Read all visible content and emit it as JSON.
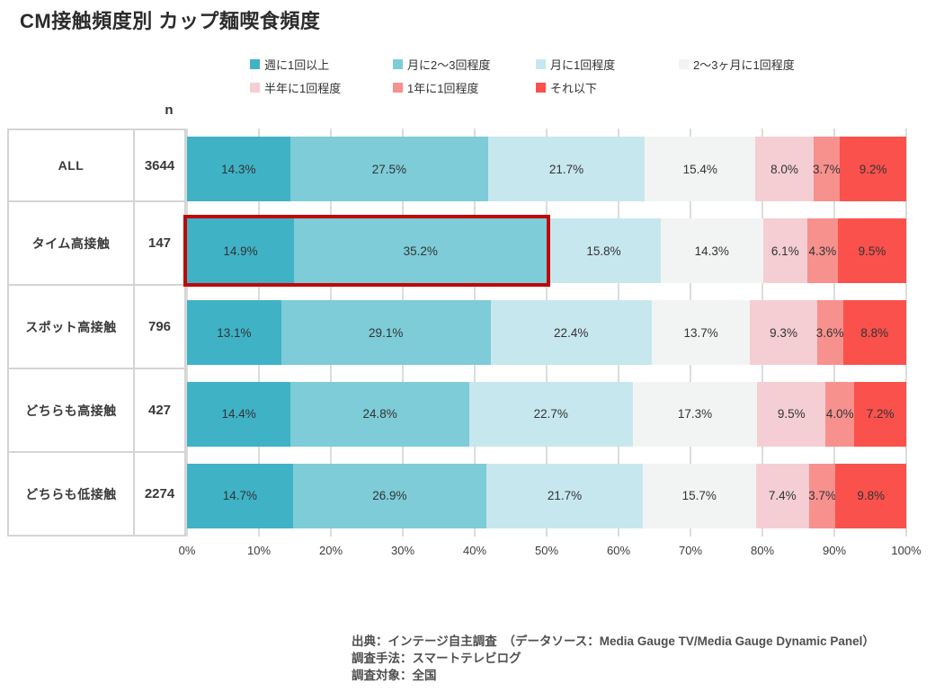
{
  "title": "CM接触頻度別 カップ麺喫食頻度",
  "n_header": "n",
  "legend": {
    "items": [
      {
        "label": "週に1回以上",
        "color": "#3fb2c6"
      },
      {
        "label": "月に2〜3回程度",
        "color": "#7dccd8"
      },
      {
        "label": "月に1回程度",
        "color": "#c7e7ee"
      },
      {
        "label": "2〜3ヶ月に1回程度",
        "color": "#f2f4f4"
      },
      {
        "label": "半年に1回程度",
        "color": "#f4ced3"
      },
      {
        "label": "1年に1回程度",
        "color": "#f7918e"
      },
      {
        "label": "それ以下",
        "color": "#fa514c"
      }
    ]
  },
  "chart_data": {
    "type": "bar",
    "stacked": true,
    "orientation": "horizontal",
    "unit": "%",
    "xlim": [
      0,
      100
    ],
    "x_ticks": [
      "0%",
      "10%",
      "20%",
      "30%",
      "40%",
      "50%",
      "60%",
      "70%",
      "80%",
      "90%",
      "100%"
    ],
    "grid": true,
    "legend_position": "top",
    "categories": [
      "ALL",
      "タイム高接触",
      "スポット高接触",
      "どちらも高接触",
      "どちらも低接触"
    ],
    "n_values": [
      3644,
      147,
      796,
      427,
      2274
    ],
    "series": [
      {
        "name": "週に1回以上",
        "color": "#3fb2c6",
        "values": [
          14.3,
          14.9,
          13.1,
          14.4,
          14.7
        ]
      },
      {
        "name": "月に2〜3回程度",
        "color": "#7dccd8",
        "values": [
          27.5,
          35.2,
          29.1,
          24.8,
          26.9
        ]
      },
      {
        "name": "月に1回程度",
        "color": "#c7e7ee",
        "values": [
          21.7,
          15.8,
          22.4,
          22.7,
          21.7
        ]
      },
      {
        "name": "2〜3ヶ月に1回程度",
        "color": "#f2f4f4",
        "values": [
          15.4,
          14.3,
          13.7,
          17.3,
          15.7
        ]
      },
      {
        "name": "半年に1回程度",
        "color": "#f4ced3",
        "values": [
          8.0,
          6.1,
          9.3,
          9.5,
          7.4
        ]
      },
      {
        "name": "1年に1回程度",
        "color": "#f7918e",
        "values": [
          3.7,
          4.3,
          3.6,
          4.0,
          3.7
        ]
      },
      {
        "name": "それ以下",
        "color": "#fa514c",
        "values": [
          9.2,
          9.5,
          8.8,
          7.2,
          9.8
        ]
      }
    ],
    "highlight": {
      "row": "タイム高接触",
      "row_index": 1,
      "series_span": 2,
      "color": "#bf0808"
    }
  },
  "footer": {
    "lines": [
      "出典：インテージ自主調査　（データソース：Media Gauge TV/Media Gauge Dynamic Panel）",
      "調査手法：スマートテレビログ",
      "調査対象：全国"
    ]
  }
}
